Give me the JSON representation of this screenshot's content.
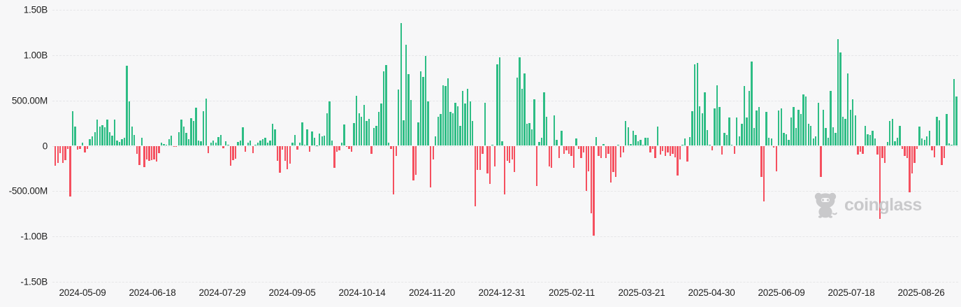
{
  "watermark": {
    "text": "coinglass",
    "icon": "coinglass-bear-icon"
  },
  "colors": {
    "positive_bar": "#2ebd85",
    "negative_bar": "#f5505f",
    "background": "#f7f7f8",
    "gridline": "#e6e6e8",
    "axis_text": "#1f1f1f",
    "watermark": "#c9c9cb"
  },
  "chart_data": {
    "type": "bar",
    "title": "",
    "legend": "none",
    "grid": "horizontal-dashed",
    "value_unit": "millions (USD)",
    "ylim_millions": [
      -1500,
      1500
    ],
    "y_ticks": [
      {
        "label": "1.50B",
        "value": 1500
      },
      {
        "label": "1.00B",
        "value": 1000
      },
      {
        "label": "500.00M",
        "value": 500
      },
      {
        "label": "0",
        "value": 0
      },
      {
        "label": "-500.00M",
        "value": -500
      },
      {
        "label": "-1.00B",
        "value": -1000
      },
      {
        "label": "-1.50B",
        "value": -1500
      }
    ],
    "x_ticks": [
      "2024-05-09",
      "2024-06-18",
      "2024-07-29",
      "2024-09-05",
      "2024-10-14",
      "2024-11-20",
      "2024-12-31",
      "2025-02-11",
      "2025-03-21",
      "2025-04-30",
      "2025-06-09",
      "2025-07-18",
      "2025-08-26"
    ],
    "values_millions": [
      -217,
      -186,
      -82,
      -186,
      -160,
      -31,
      -560,
      382,
      214,
      -44,
      -31,
      33,
      -70,
      -31,
      72,
      103,
      150,
      292,
      214,
      227,
      201,
      292,
      150,
      111,
      292,
      59,
      46,
      72,
      85,
      886,
      493,
      214,
      118,
      -92,
      -215,
      92,
      -233,
      -151,
      -169,
      -156,
      -151,
      -177,
      -79,
      36,
      20,
      15,
      74,
      113,
      -10,
      -13,
      151,
      292,
      215,
      143,
      74,
      305,
      272,
      420,
      61,
      49,
      382,
      523,
      -79,
      36,
      61,
      31,
      100,
      118,
      -28,
      49,
      15,
      -220,
      -156,
      -144,
      41,
      61,
      203,
      -67,
      36,
      56,
      -79,
      10,
      36,
      61,
      74,
      87,
      36,
      61,
      241,
      185,
      -169,
      -297,
      -41,
      -169,
      -259,
      -195,
      31,
      118,
      -41,
      36,
      262,
      15,
      182,
      -67,
      156,
      87,
      5,
      138,
      105,
      113,
      362,
      492,
      61,
      -246,
      -67,
      -54,
      31,
      236,
      -15,
      -36,
      -67,
      250,
      550,
      362,
      323,
      451,
      272,
      297,
      -87,
      195,
      221,
      374,
      464,
      823,
      893,
      36,
      -36,
      -536,
      -113,
      618,
      1354,
      285,
      1118,
      790,
      503,
      -382,
      -318,
      259,
      823,
      759,
      990,
      490,
      -459,
      -151,
      105,
      323,
      349,
      669,
      657,
      746,
      374,
      362,
      477,
      438,
      221,
      605,
      464,
      631,
      490,
      272,
      -664,
      -267,
      -267,
      -87,
      477,
      -305,
      -421,
      15,
      -228,
      900,
      977,
      54,
      -536,
      -164,
      -190,
      -151,
      -292,
      754,
      977,
      626,
      798,
      246,
      251,
      182,
      515,
      -446,
      41,
      92,
      592,
      323,
      -228,
      -241,
      336,
      67,
      -138,
      169,
      -87,
      -49,
      -87,
      -113,
      -241,
      80,
      -36,
      -138,
      -74,
      -497,
      -280,
      -741,
      -993,
      97,
      -113,
      -138,
      23,
      -138,
      -87,
      -408,
      -292,
      -344,
      15,
      -126,
      -74,
      272,
      208,
      21,
      169,
      118,
      54,
      67,
      15,
      92,
      92,
      -74,
      -36,
      -138,
      213,
      -100,
      -56,
      -113,
      -74,
      -113,
      -87,
      -126,
      -331,
      -151,
      15,
      80,
      -177,
      97,
      380,
      900,
      913,
      439,
      362,
      593,
      174,
      10,
      -49,
      413,
      669,
      426,
      -100,
      144,
      118,
      310,
      8,
      -87,
      315,
      105,
      246,
      657,
      310,
      605,
      926,
      195,
      387,
      426,
      -344,
      -613,
      374,
      92,
      80,
      -23,
      -280,
      387,
      413,
      144,
      131,
      67,
      310,
      426,
      195,
      400,
      349,
      567,
      541,
      246,
      221,
      80,
      105,
      477,
      -344,
      400,
      195,
      92,
      605,
      208,
      144,
      1175,
      1029,
      323,
      298,
      798,
      400,
      516,
      336,
      -100,
      -62,
      -87,
      221,
      131,
      118,
      169,
      80,
      -100,
      -806,
      -138,
      -190,
      41,
      272,
      298,
      54,
      92,
      221,
      -36,
      -113,
      -138,
      -510,
      -305,
      -190,
      -36,
      213,
      80,
      67,
      105,
      169,
      -49,
      -126,
      323,
      285,
      -215,
      -138,
      349,
      28,
      15,
      734,
      541
    ]
  }
}
